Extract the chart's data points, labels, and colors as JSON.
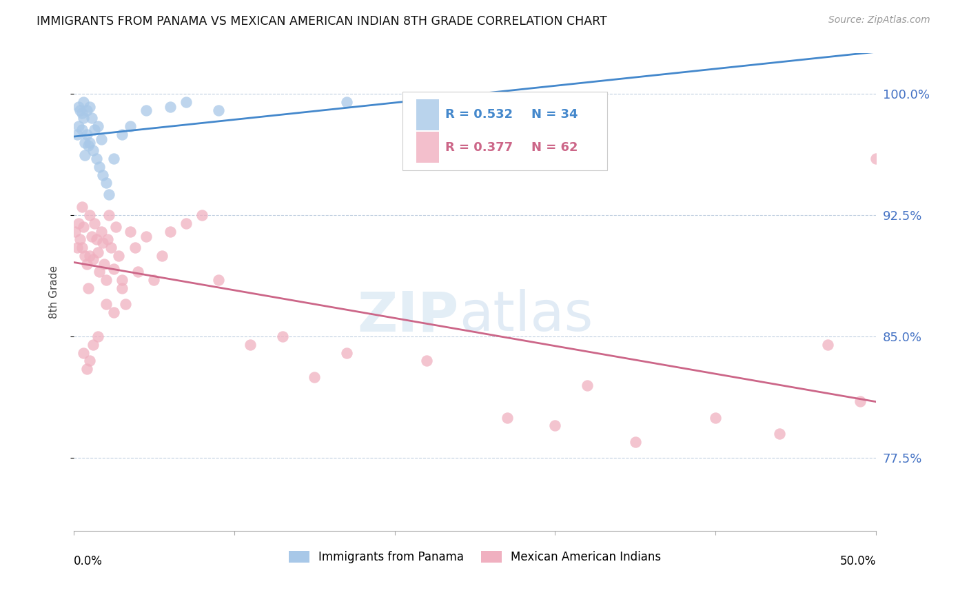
{
  "title": "IMMIGRANTS FROM PANAMA VS MEXICAN AMERICAN INDIAN 8TH GRADE CORRELATION CHART",
  "source": "Source: ZipAtlas.com",
  "ylabel": "8th Grade",
  "yticks": [
    77.5,
    85.0,
    92.5,
    100.0
  ],
  "ytick_labels": [
    "77.5%",
    "85.0%",
    "92.5%",
    "100.0%"
  ],
  "xmin": 0.0,
  "xmax": 50.0,
  "ymin": 73.0,
  "ymax": 102.5,
  "blue_color": "#a8c8e8",
  "pink_color": "#f0b0c0",
  "blue_line_color": "#4488cc",
  "pink_line_color": "#cc6688",
  "legend_blue_r": "R = 0.532",
  "legend_blue_n": "N = 34",
  "legend_pink_r": "R = 0.377",
  "legend_pink_n": "N = 62",
  "blue_scatter_x": [
    0.2,
    0.3,
    0.3,
    0.4,
    0.5,
    0.5,
    0.6,
    0.6,
    0.7,
    0.7,
    0.8,
    0.8,
    0.9,
    1.0,
    1.0,
    1.1,
    1.2,
    1.3,
    1.4,
    1.5,
    1.6,
    1.7,
    1.8,
    2.0,
    2.2,
    2.5,
    3.0,
    3.5,
    4.5,
    6.0,
    7.0,
    9.0,
    17.0,
    27.5
  ],
  "blue_scatter_y": [
    97.5,
    99.2,
    98.0,
    99.0,
    98.8,
    97.8,
    99.5,
    98.5,
    97.0,
    96.2,
    99.0,
    97.5,
    96.8,
    99.2,
    97.0,
    98.5,
    96.5,
    97.8,
    96.0,
    98.0,
    95.5,
    97.2,
    95.0,
    94.5,
    93.8,
    96.0,
    97.5,
    98.0,
    99.0,
    99.2,
    99.5,
    99.0,
    99.5,
    99.8
  ],
  "pink_scatter_x": [
    0.1,
    0.2,
    0.3,
    0.4,
    0.5,
    0.5,
    0.6,
    0.7,
    0.8,
    0.9,
    1.0,
    1.0,
    1.1,
    1.2,
    1.3,
    1.4,
    1.5,
    1.6,
    1.7,
    1.8,
    1.9,
    2.0,
    2.1,
    2.2,
    2.3,
    2.5,
    2.6,
    2.8,
    3.0,
    3.2,
    3.5,
    3.8,
    4.0,
    4.5,
    5.0,
    5.5,
    6.0,
    7.0,
    8.0,
    9.0,
    11.0,
    13.0,
    15.0,
    17.0,
    22.0,
    27.0,
    30.0,
    32.0,
    35.0,
    40.0,
    44.0,
    47.0,
    49.0,
    50.0,
    0.6,
    0.8,
    1.0,
    1.2,
    1.5,
    2.0,
    2.5,
    3.0
  ],
  "pink_scatter_y": [
    91.5,
    90.5,
    92.0,
    91.0,
    93.0,
    90.5,
    91.8,
    90.0,
    89.5,
    88.0,
    92.5,
    90.0,
    91.2,
    89.8,
    92.0,
    91.0,
    90.2,
    89.0,
    91.5,
    90.8,
    89.5,
    88.5,
    91.0,
    92.5,
    90.5,
    89.2,
    91.8,
    90.0,
    88.5,
    87.0,
    91.5,
    90.5,
    89.0,
    91.2,
    88.5,
    90.0,
    91.5,
    92.0,
    92.5,
    88.5,
    84.5,
    85.0,
    82.5,
    84.0,
    83.5,
    80.0,
    79.5,
    82.0,
    78.5,
    80.0,
    79.0,
    84.5,
    81.0,
    96.0,
    84.0,
    83.0,
    83.5,
    84.5,
    85.0,
    87.0,
    86.5,
    88.0
  ]
}
